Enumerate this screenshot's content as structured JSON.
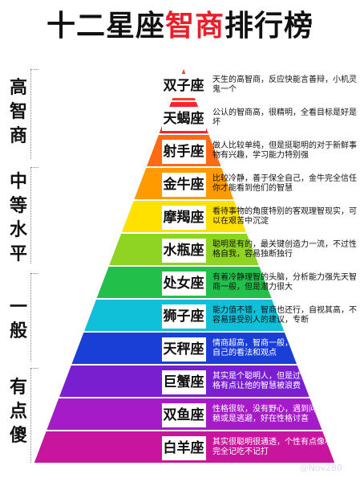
{
  "title": {
    "part1": "十二星座",
    "part2": "智商",
    "part3": "排行榜"
  },
  "side_labels": [
    {
      "text": "高智商"
    },
    {
      "text": "中等水平"
    },
    {
      "text": "一般"
    },
    {
      "text": "有点傻"
    }
  ],
  "tiers": [
    {
      "name": "双子座",
      "color": "#ff3b30",
      "desc": "天生的高智商，反应快能言善辩，小机灵鬼一个"
    },
    {
      "name": "天蝎座",
      "color": "#f7262e",
      "desc": "公认的智商高，很精明，全看目标是好是坏"
    },
    {
      "name": "射手座",
      "color": "#ff6a13",
      "desc": "做人比较单纯，但是挺聪明的对于新鲜事物有兴趣，学习能力特别强"
    },
    {
      "name": "金牛座",
      "color": "#ff9a00",
      "desc": "比较冷静，善于保全自己，金牛完全信任你才能看到他们的智慧"
    },
    {
      "name": "摩羯座",
      "color": "#ffe100",
      "desc": "看待事物的角度特别的客观理智现实，可以在艰苦中沉淀"
    },
    {
      "name": "水瓶座",
      "color": "#8fd422",
      "desc": "聪明是有的，最关键创造力一流，不过性格自我，容易独断独行"
    },
    {
      "name": "处女座",
      "color": "#22c04a",
      "desc": "有着冷静理智的头脑，分析能力强先天智商一般，但是潜力很大"
    },
    {
      "name": "狮子座",
      "color": "#10bfd8",
      "desc": "能力值不错，智商也还行，自视其高，不容易接受别人的建议，专断"
    },
    {
      "name": "天秤座",
      "color": "#1a3fd6",
      "desc": "情商超高，智商一般，优柔寡断，不太有自己的看法和观点"
    },
    {
      "name": "巨蟹座",
      "color": "#7a1fd0",
      "desc": "其实是个聪明人，但是过于心软善良的性格有点让他的智慧被浪费"
    },
    {
      "name": "双鱼座",
      "color": "#a51bc8",
      "desc": "性格很软，没有野心，遇到问题想的是依赖或是逃避，好在性格讨喜"
    },
    {
      "name": "白羊座",
      "color": "#c8159e",
      "desc": "其实很聪明很通透，个性有点像小孩子，完全记吃不记打"
    }
  ],
  "watermark": "@Nov280"
}
